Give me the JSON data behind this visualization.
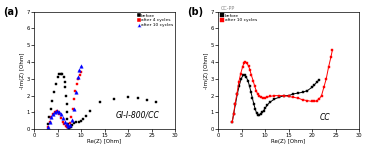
{
  "panel_a": {
    "label": "(a)",
    "xlabel": "Re(Z) [Ohm]",
    "ylabel": "-Im(Z) [Ohm]",
    "xlim": [
      0,
      30
    ],
    "ylim": [
      0,
      7
    ],
    "xticks": [
      0,
      5,
      10,
      15,
      20,
      25,
      30
    ],
    "yticks": [
      0,
      1,
      2,
      3,
      4,
      5,
      6,
      7
    ],
    "annotation": "GI-I-800/CC",
    "series": {
      "before": {
        "color": "#000000",
        "marker": "s",
        "markersize": 2.0,
        "x": [
          3.0,
          3.2,
          3.5,
          3.8,
          4.2,
          4.6,
          5.0,
          5.4,
          5.7,
          6.0,
          6.3,
          6.5,
          6.65,
          6.8,
          6.9,
          7.0,
          7.1,
          7.2,
          7.3,
          7.4,
          7.5,
          7.6,
          7.8,
          8.1,
          8.5,
          9.0,
          9.5,
          10.0,
          10.5,
          11.0,
          12.0,
          14.0,
          17.0,
          20.0,
          22.0,
          24.0,
          26.0
        ],
        "y": [
          0.3,
          0.7,
          1.2,
          1.7,
          2.2,
          2.7,
          3.1,
          3.3,
          3.3,
          3.3,
          3.1,
          2.8,
          2.5,
          2.0,
          1.5,
          1.0,
          0.6,
          0.3,
          0.15,
          0.08,
          0.08,
          0.1,
          0.15,
          0.25,
          0.35,
          0.45,
          0.45,
          0.5,
          0.6,
          0.8,
          1.1,
          1.6,
          1.8,
          1.9,
          1.85,
          1.75,
          1.6
        ]
      },
      "after_4": {
        "color": "#ff0000",
        "marker": "s",
        "markersize": 2.0,
        "x": [
          3.0,
          3.3,
          3.6,
          4.0,
          4.4,
          4.8,
          5.1,
          5.4,
          5.8,
          6.1,
          6.4,
          6.7,
          7.0,
          7.3,
          7.6,
          7.9,
          8.2,
          8.5,
          8.8,
          9.1,
          9.4,
          9.7,
          10.0
        ],
        "y": [
          0.15,
          0.4,
          0.7,
          0.9,
          1.05,
          1.1,
          1.05,
          0.9,
          0.65,
          0.45,
          0.28,
          0.18,
          0.13,
          0.18,
          0.35,
          0.7,
          1.2,
          1.8,
          2.3,
          2.7,
          3.0,
          3.25,
          3.4
        ]
      },
      "after_10": {
        "color": "#0000ff",
        "marker": "^",
        "markersize": 2.5,
        "x": [
          3.0,
          3.3,
          3.7,
          4.1,
          4.5,
          4.9,
          5.3,
          5.7,
          6.1,
          6.5,
          6.9,
          7.3,
          7.7,
          8.1,
          8.5,
          8.9,
          9.3,
          9.6,
          9.9
        ],
        "y": [
          0.15,
          0.4,
          0.7,
          0.9,
          1.05,
          1.1,
          1.05,
          0.9,
          0.65,
          0.45,
          0.28,
          0.18,
          0.25,
          0.55,
          1.2,
          2.2,
          3.1,
          3.55,
          3.75
        ]
      }
    },
    "legend": {
      "before": "before",
      "after_4": "after 4 cycles",
      "after_10": "after 10 cycles"
    }
  },
  "panel_b": {
    "label": "(b)",
    "xlabel": "Re(Z) [Ohm]",
    "ylabel": "-Im(Z) [Ohm]",
    "xlim": [
      0,
      30
    ],
    "ylim": [
      0,
      7
    ],
    "xticks": [
      0,
      5,
      10,
      15,
      20,
      25,
      30
    ],
    "yticks": [
      0,
      1,
      2,
      3,
      4,
      5,
      6,
      7
    ],
    "annotation": "CC",
    "top_annotation": "CC-PP",
    "series": {
      "before": {
        "color": "#000000",
        "marker": "s",
        "markersize": 2.0,
        "linestyle": "-",
        "linewidth": 0.7,
        "x": [
          3.0,
          3.3,
          3.7,
          4.1,
          4.5,
          4.9,
          5.3,
          5.7,
          6.0,
          6.4,
          6.7,
          7.0,
          7.3,
          7.6,
          7.9,
          8.2,
          8.5,
          8.8,
          9.1,
          9.4,
          9.7,
          10.0,
          10.5,
          11.0,
          12.0,
          13.0,
          14.0,
          15.0,
          16.0,
          17.0,
          18.0,
          19.0,
          20.0,
          20.5,
          21.0,
          21.5
        ],
        "y": [
          0.4,
          0.9,
          1.5,
          2.1,
          2.6,
          3.0,
          3.2,
          3.2,
          3.1,
          2.85,
          2.55,
          2.2,
          1.85,
          1.5,
          1.2,
          0.95,
          0.85,
          0.85,
          0.9,
          1.0,
          1.1,
          1.25,
          1.45,
          1.6,
          1.8,
          1.9,
          2.0,
          2.0,
          2.1,
          2.15,
          2.2,
          2.3,
          2.5,
          2.65,
          2.8,
          2.95
        ]
      },
      "after_10": {
        "color": "#ff0000",
        "marker": "s",
        "markersize": 2.0,
        "linestyle": "-",
        "linewidth": 0.7,
        "x": [
          3.0,
          3.3,
          3.6,
          4.0,
          4.4,
          4.8,
          5.2,
          5.5,
          5.8,
          6.1,
          6.5,
          6.8,
          7.1,
          7.5,
          7.8,
          8.1,
          8.4,
          8.8,
          9.1,
          9.5,
          9.9,
          10.3,
          11.0,
          12.0,
          13.0,
          14.0,
          15.0,
          16.0,
          17.0,
          18.0,
          19.0,
          20.0,
          20.5,
          21.0,
          21.5,
          22.0,
          22.5,
          23.0,
          23.5,
          24.0,
          24.3
        ],
        "y": [
          0.4,
          0.9,
          1.5,
          2.1,
          2.8,
          3.3,
          3.7,
          3.95,
          4.0,
          3.95,
          3.75,
          3.5,
          3.2,
          2.85,
          2.55,
          2.3,
          2.1,
          1.95,
          1.9,
          1.85,
          1.85,
          1.9,
          1.95,
          2.0,
          2.0,
          2.0,
          1.95,
          1.9,
          1.85,
          1.75,
          1.7,
          1.65,
          1.65,
          1.7,
          1.8,
          2.0,
          2.5,
          3.0,
          3.7,
          4.3,
          4.7
        ]
      }
    },
    "legend": {
      "before": "before",
      "after_10": "after 10 cycles"
    }
  },
  "fig_background": "#ffffff",
  "panel_background": "#ffffff"
}
